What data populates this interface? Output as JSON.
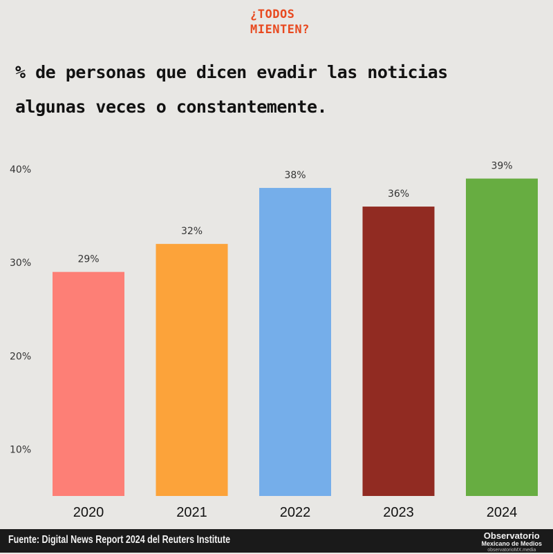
{
  "logo": {
    "line1": "¿TODOS",
    "line2": "MIENTEN?"
  },
  "title": "% de personas que dicen evadir las noticias algunas veces o constantemente.",
  "chart_data": {
    "type": "bar",
    "categories": [
      "2020",
      "2021",
      "2022",
      "2023",
      "2024"
    ],
    "values": [
      29,
      32,
      38,
      36,
      39
    ],
    "value_labels": [
      "29%",
      "32%",
      "38%",
      "36%",
      "39%"
    ],
    "colors": [
      "#fd7f76",
      "#fca33a",
      "#75aeea",
      "#912b22",
      "#67ad41"
    ],
    "yticks": [
      10,
      20,
      30,
      40
    ],
    "ytick_labels": [
      "10%",
      "20%",
      "30%",
      "40%"
    ],
    "ylim": [
      5,
      40
    ],
    "grid": false,
    "title": "",
    "xlabel": "",
    "ylabel": ""
  },
  "footer": {
    "source": "Fuente: Digital News Report 2024 del Reuters Institute",
    "brand_line1": "Observatorio",
    "brand_line2": "Mexicano de Medios",
    "brand_line3": "observatorioMX.media"
  }
}
